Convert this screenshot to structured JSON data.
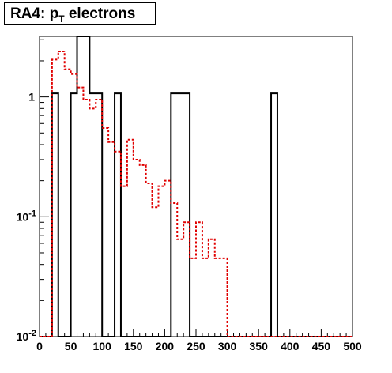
{
  "title": {
    "main": "RA4: p",
    "sub": "T",
    "rest": " electrons"
  },
  "chart_data": {
    "type": "line",
    "xlabel": "",
    "ylabel": "",
    "xlim": [
      0,
      500
    ],
    "ylim": [
      0.01,
      3.2
    ],
    "yscale": "log",
    "grid": false,
    "x_ticks": [
      0,
      50,
      100,
      150,
      200,
      250,
      300,
      350,
      400,
      450,
      500
    ],
    "x_tick_labels": [
      "0",
      "50",
      "100",
      "150",
      "200",
      "250",
      "300",
      "350",
      "400",
      "450",
      "500"
    ],
    "y_ticks": [
      0.01,
      0.1,
      1
    ],
    "y_tick_labels": [
      {
        "base": "10",
        "exp": "-2"
      },
      {
        "base": "10",
        "exp": "-1"
      },
      {
        "base": "1",
        "exp": ""
      }
    ],
    "series": [
      {
        "style": "solid",
        "color": "#000000",
        "bin_width": 10,
        "bins_x": [
          0,
          10,
          20,
          30,
          40,
          50,
          60,
          70,
          80,
          90,
          100,
          110,
          120,
          130,
          140,
          150,
          160,
          170,
          180,
          190,
          200,
          210,
          220,
          230,
          240,
          250,
          260,
          270,
          280,
          290,
          300,
          310,
          320,
          330,
          340,
          350,
          360,
          370,
          380,
          390,
          400,
          410,
          420,
          430,
          440,
          450,
          460,
          470,
          480,
          490
        ],
        "values": [
          0,
          0,
          1.07,
          0,
          0,
          1.07,
          3.2,
          3.2,
          1.07,
          1.07,
          0,
          0,
          1.07,
          0,
          0,
          0,
          0,
          0,
          0,
          0,
          0,
          1.07,
          1.07,
          1.07,
          0,
          0,
          0,
          0,
          0,
          0,
          0,
          0,
          0,
          0,
          0,
          0,
          0,
          1.07,
          0,
          0,
          0,
          0,
          0,
          0,
          0,
          0,
          0,
          0,
          0,
          0
        ]
      },
      {
        "style": "dashed",
        "color": "#e00000",
        "bin_width": 5,
        "bins_x": [
          0,
          5,
          10,
          15,
          20,
          25,
          30,
          35,
          40,
          45,
          50,
          55,
          60,
          65,
          70,
          75,
          80,
          85,
          90,
          95,
          100,
          105,
          110,
          115,
          120,
          125,
          130,
          135,
          140,
          145,
          150,
          155,
          160,
          165,
          170,
          175,
          180,
          185,
          190,
          195,
          200,
          205,
          210,
          215,
          220,
          225,
          230,
          235,
          240,
          245,
          250,
          255,
          260,
          265,
          270,
          275,
          280,
          285,
          290,
          295,
          300,
          305,
          310,
          315,
          320,
          325,
          330,
          335,
          340,
          345,
          350,
          355,
          360,
          365,
          370,
          375,
          380,
          385,
          390,
          395,
          400,
          405,
          410,
          415,
          420,
          425,
          430,
          435,
          440,
          445,
          450,
          455,
          460,
          465,
          470,
          475,
          480,
          485,
          490,
          495
        ],
        "values": [
          0,
          0,
          0,
          0,
          2.05,
          2.05,
          2.4,
          2.4,
          1.7,
          1.7,
          1.55,
          1.55,
          1.2,
          1.2,
          0.95,
          0.95,
          0.8,
          0.8,
          0.95,
          0.95,
          0.55,
          0.55,
          0.42,
          0.42,
          0.35,
          0.35,
          0.18,
          0.18,
          0.44,
          0.44,
          0.3,
          0.3,
          0.27,
          0.27,
          0.19,
          0.19,
          0.12,
          0.12,
          0.18,
          0.18,
          0.2,
          0.2,
          0.13,
          0.13,
          0.065,
          0.065,
          0.09,
          0.09,
          0.045,
          0.045,
          0.09,
          0.09,
          0.045,
          0.045,
          0.065,
          0.065,
          0.045,
          0.045,
          0.045,
          0.045,
          0.0,
          0.0,
          0.0,
          0.0,
          0.0,
          0.0,
          0.0,
          0.0,
          0.0,
          0.0,
          0.0,
          0.0,
          0.0,
          0.0,
          0.0,
          0.0,
          0.0,
          0.0,
          0.0,
          0.0,
          0.0,
          0.0,
          0.0,
          0.0,
          0.0,
          0.0,
          0.0,
          0.0,
          0.0,
          0.0,
          0.0,
          0.0,
          0.0,
          0.0,
          0.0,
          0.0,
          0.0,
          0.0,
          0.0,
          0.0
        ]
      }
    ]
  }
}
